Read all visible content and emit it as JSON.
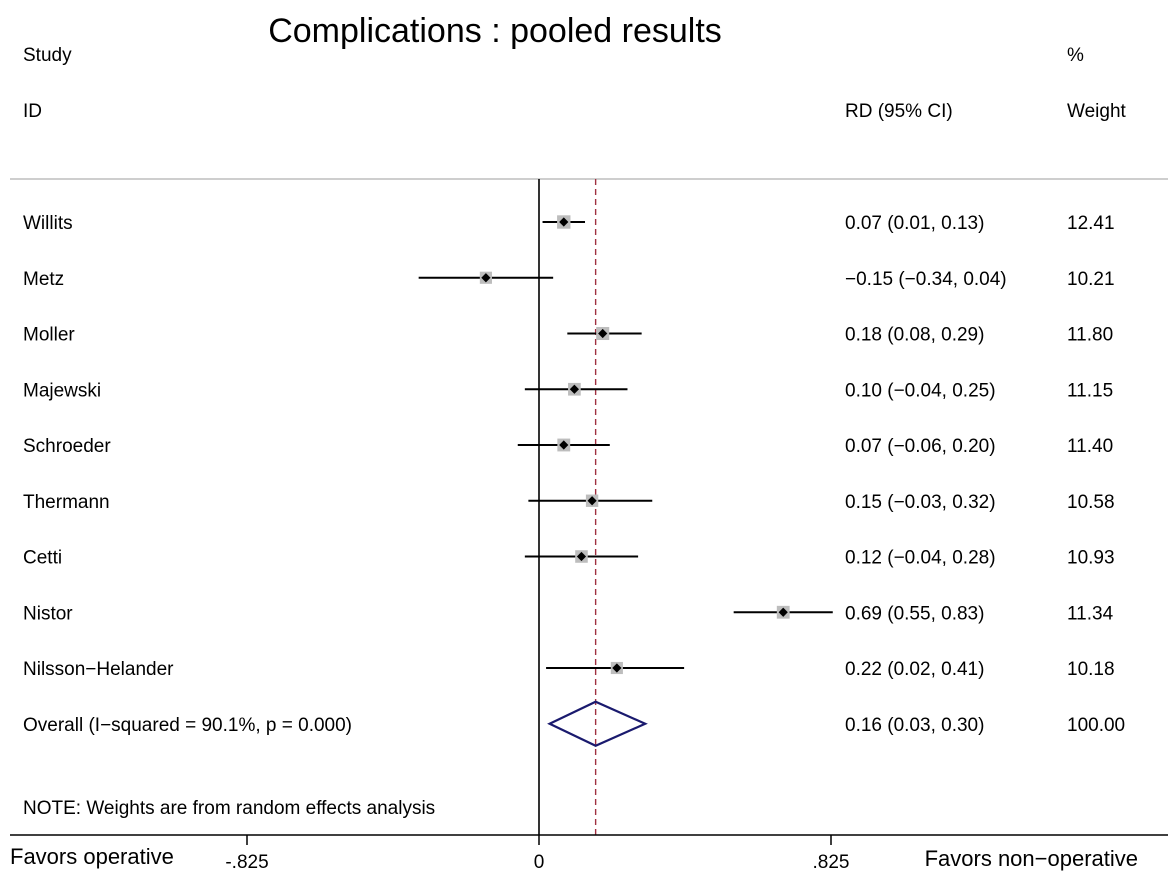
{
  "chart_data": {
    "type": "forest",
    "title": "Complications : pooled results",
    "header": {
      "study_line1": "Study",
      "study_line2": "ID",
      "effect_label": "RD (95% CI)",
      "weight_line1": "%",
      "weight_line2": "Weight"
    },
    "studies": [
      {
        "name": "Willits",
        "est": 0.07,
        "lo": 0.01,
        "hi": 0.13,
        "ci_text": "0.07 (0.01, 0.13)",
        "weight": 12.41,
        "weight_text": "12.41"
      },
      {
        "name": "Metz",
        "est": -0.15,
        "lo": -0.34,
        "hi": 0.04,
        "ci_text": "−0.15 (−0.34, 0.04)",
        "weight": 10.21,
        "weight_text": "10.21"
      },
      {
        "name": "Moller",
        "est": 0.18,
        "lo": 0.08,
        "hi": 0.29,
        "ci_text": "0.18 (0.08, 0.29)",
        "weight": 11.8,
        "weight_text": "11.80"
      },
      {
        "name": "Majewski",
        "est": 0.1,
        "lo": -0.04,
        "hi": 0.25,
        "ci_text": "0.10 (−0.04, 0.25)",
        "weight": 11.15,
        "weight_text": "11.15"
      },
      {
        "name": "Schroeder",
        "est": 0.07,
        "lo": -0.06,
        "hi": 0.2,
        "ci_text": "0.07 (−0.06, 0.20)",
        "weight": 11.4,
        "weight_text": "11.40"
      },
      {
        "name": "Thermann",
        "est": 0.15,
        "lo": -0.03,
        "hi": 0.32,
        "ci_text": "0.15 (−0.03, 0.32)",
        "weight": 10.58,
        "weight_text": "10.58"
      },
      {
        "name": "Cetti",
        "est": 0.12,
        "lo": -0.04,
        "hi": 0.28,
        "ci_text": "0.12 (−0.04, 0.28)",
        "weight": 10.93,
        "weight_text": "10.93"
      },
      {
        "name": "Nistor",
        "est": 0.69,
        "lo": 0.55,
        "hi": 0.83,
        "ci_text": "0.69 (0.55, 0.83)",
        "weight": 11.34,
        "weight_text": "11.34"
      },
      {
        "name": "Nilsson−Helander",
        "est": 0.22,
        "lo": 0.02,
        "hi": 0.41,
        "ci_text": "0.22 (0.02, 0.41)",
        "weight": 10.18,
        "weight_text": "10.18"
      }
    ],
    "overall": {
      "label": "Overall  (I−squared = 90.1%, p = 0.000)",
      "est": 0.16,
      "lo": 0.03,
      "hi": 0.3,
      "ci_text": "0.16 (0.03, 0.30)",
      "weight_text": "100.00"
    },
    "note": "NOTE: Weights are from random effects analysis",
    "x_ticks": [
      {
        "value": -0.825,
        "label": "-.825"
      },
      {
        "value": 0,
        "label": "0"
      },
      {
        "value": 0.825,
        "label": ".825"
      }
    ],
    "x_left_label": "Favors operative",
    "x_right_label": "Favors non−operative",
    "xlim": [
      -0.825,
      0.825
    ],
    "null_value": 0,
    "colors": {
      "overall_diamond": "#1a1a6e",
      "pooled_line": "#a03040",
      "weight_box": "#bdbdbd",
      "separator": "#bdbdbd"
    }
  }
}
